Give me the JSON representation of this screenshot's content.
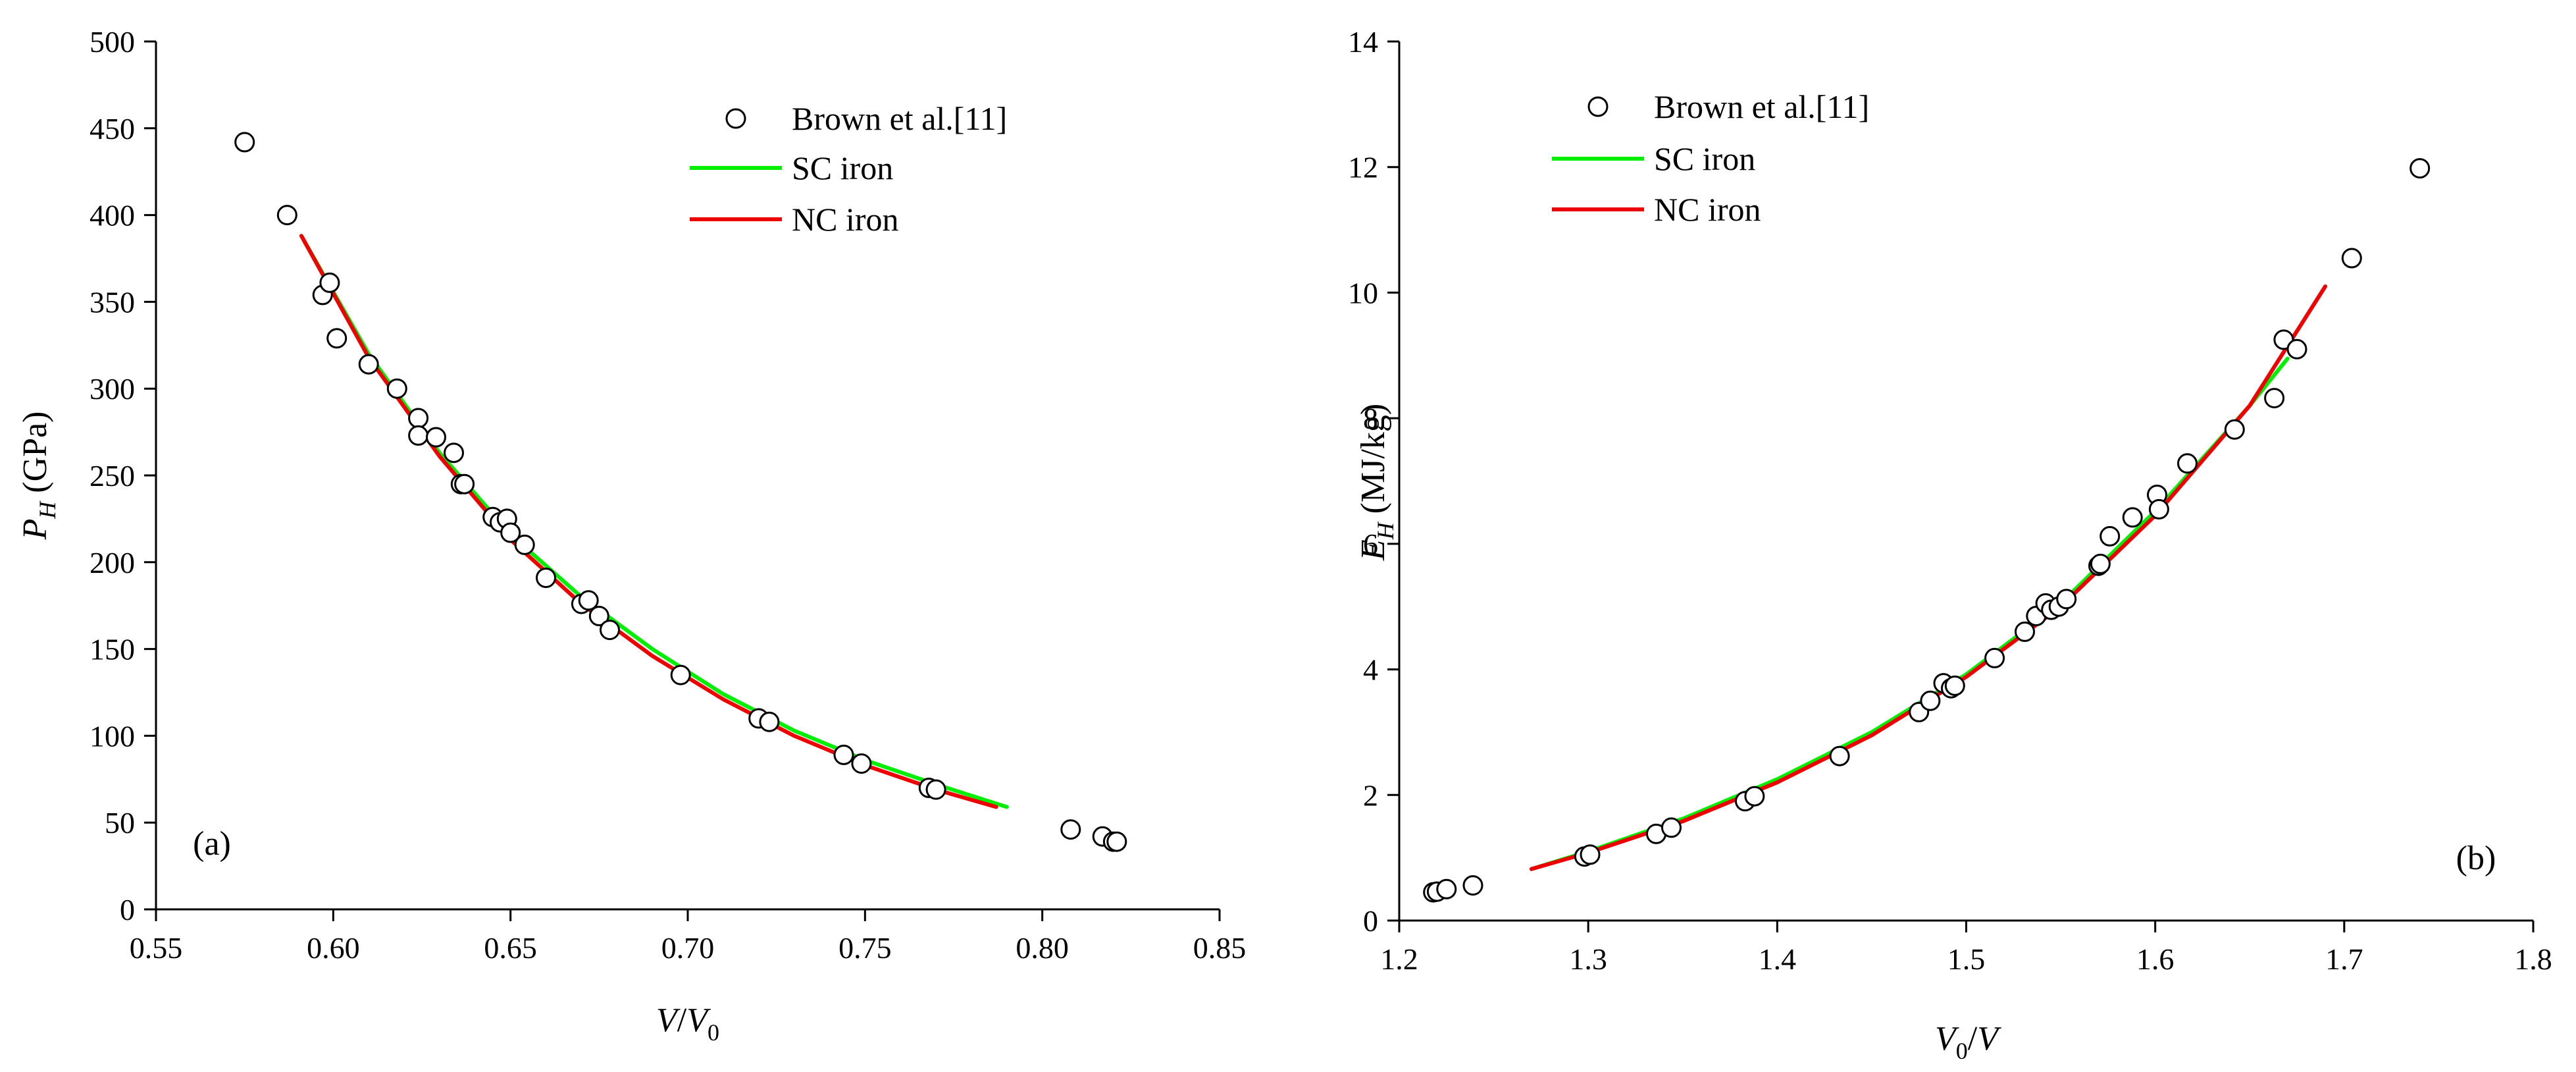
{
  "colors": {
    "sc_iron": "#00ee00",
    "nc_iron": "#ee0000",
    "axis": "#000000"
  },
  "chart_data": [
    {
      "type": "scatter+line",
      "panel_label": "(a)",
      "title": "",
      "xlabel": {
        "var": "V",
        "sep": "/",
        "var2": "V",
        "sub2": "0"
      },
      "ylabel": {
        "var": "P",
        "sub": "H",
        "unit": "(GPa)"
      },
      "xlim": [
        0.55,
        0.85
      ],
      "ylim": [
        0,
        500
      ],
      "xticks": [
        0.55,
        0.6,
        0.65,
        0.7,
        0.75,
        0.8,
        0.85
      ],
      "xtick_labels": [
        "0.55",
        "0.60",
        "0.65",
        "0.70",
        "0.75",
        "0.80",
        "0.85"
      ],
      "yticks": [
        0,
        50,
        100,
        150,
        200,
        250,
        300,
        350,
        400,
        450,
        500
      ],
      "ytick_labels": [
        "0",
        "50",
        "100",
        "150",
        "200",
        "250",
        "300",
        "350",
        "400",
        "450",
        "500"
      ],
      "legend": [
        {
          "label": "Brown et al.[11]",
          "kind": "marker"
        },
        {
          "label": "SC iron",
          "kind": "line",
          "color": "#00ee00"
        },
        {
          "label": "NC iron",
          "kind": "line",
          "color": "#ee0000"
        }
      ],
      "series": [
        {
          "name": "Brown et al.[11]",
          "kind": "scatter",
          "x": [
            0.575,
            0.587,
            0.597,
            0.599,
            0.601,
            0.61,
            0.618,
            0.624,
            0.624,
            0.629,
            0.634,
            0.636,
            0.637,
            0.645,
            0.647,
            0.649,
            0.65,
            0.654,
            0.66,
            0.67,
            0.672,
            0.675,
            0.678,
            0.698,
            0.72,
            0.723,
            0.744,
            0.749,
            0.768,
            0.77,
            0.808,
            0.817,
            0.82,
            0.821
          ],
          "y": [
            442,
            400,
            354,
            361,
            329,
            314,
            300,
            283,
            273,
            272,
            263,
            245,
            245,
            226,
            223,
            225,
            217,
            210,
            191,
            176,
            178,
            169,
            161,
            135,
            110,
            108,
            89,
            84,
            70,
            69,
            46,
            42,
            39,
            39
          ]
        },
        {
          "name": "SC iron",
          "kind": "line",
          "color": "#00ee00",
          "x": [
            0.591,
            0.61,
            0.63,
            0.65,
            0.67,
            0.69,
            0.71,
            0.73,
            0.75,
            0.77,
            0.79
          ],
          "y": [
            388,
            320,
            263,
            216,
            180,
            150,
            124,
            103,
            86,
            72,
            59
          ]
        },
        {
          "name": "NC iron",
          "kind": "line",
          "color": "#ee0000",
          "x": [
            0.591,
            0.61,
            0.63,
            0.65,
            0.67,
            0.69,
            0.71,
            0.73,
            0.75,
            0.77,
            0.787
          ],
          "y": [
            388,
            318,
            261,
            213,
            176,
            146,
            121,
            100,
            83,
            69,
            59
          ]
        }
      ]
    },
    {
      "type": "scatter+line",
      "panel_label": "(b)",
      "title": "",
      "xlabel": {
        "var": "V",
        "sub": "0",
        "sep": "/",
        "var2": "V"
      },
      "ylabel": {
        "var": "E",
        "sub": "H",
        "unit": "(MJ/kg)"
      },
      "xlim": [
        1.2,
        1.8
      ],
      "ylim": [
        0,
        14
      ],
      "xticks": [
        1.2,
        1.3,
        1.4,
        1.5,
        1.6,
        1.7,
        1.8
      ],
      "xtick_labels": [
        "1.2",
        "1.3",
        "1.4",
        "1.5",
        "1.6",
        "1.7",
        "1.8"
      ],
      "yticks": [
        0,
        2,
        4,
        6,
        8,
        10,
        12,
        14
      ],
      "ytick_labels": [
        "0",
        "2",
        "4",
        "6",
        "8",
        "10",
        "12",
        "14"
      ],
      "legend": [
        {
          "label": "Brown et al.[11]",
          "kind": "marker"
        },
        {
          "label": "SC iron",
          "kind": "line",
          "color": "#00ee00"
        },
        {
          "label": "NC iron",
          "kind": "line",
          "color": "#ee0000"
        }
      ],
      "series": [
        {
          "name": "Brown et al.[11]",
          "kind": "scatter",
          "x": [
            1.218,
            1.22,
            1.225,
            1.239,
            1.298,
            1.301,
            1.336,
            1.344,
            1.383,
            1.388,
            1.433,
            1.475,
            1.481,
            1.488,
            1.492,
            1.494,
            1.515,
            1.531,
            1.537,
            1.542,
            1.545,
            1.549,
            1.553,
            1.57,
            1.571,
            1.576,
            1.588,
            1.601,
            1.602,
            1.617,
            1.642,
            1.663,
            1.668,
            1.675,
            1.704,
            1.74
          ],
          "y": [
            0.45,
            0.46,
            0.5,
            0.56,
            1.02,
            1.05,
            1.38,
            1.48,
            1.9,
            1.98,
            2.62,
            3.32,
            3.5,
            3.78,
            3.7,
            3.74,
            4.18,
            4.6,
            4.85,
            5.05,
            4.95,
            5.0,
            5.12,
            5.65,
            5.68,
            6.12,
            6.42,
            6.78,
            6.55,
            7.28,
            7.82,
            8.32,
            9.25,
            9.1,
            10.55,
            11.98
          ]
        },
        {
          "name": "SC iron",
          "kind": "line",
          "color": "#00ee00",
          "x": [
            1.27,
            1.3,
            1.35,
            1.4,
            1.45,
            1.5,
            1.55,
            1.6,
            1.65,
            1.67
          ],
          "y": [
            0.82,
            1.1,
            1.62,
            2.25,
            3.0,
            3.92,
            5.05,
            6.52,
            8.2,
            8.95
          ]
        },
        {
          "name": "NC iron",
          "kind": "line",
          "color": "#ee0000",
          "x": [
            1.27,
            1.3,
            1.35,
            1.4,
            1.45,
            1.5,
            1.55,
            1.6,
            1.65,
            1.69
          ],
          "y": [
            0.82,
            1.08,
            1.58,
            2.2,
            2.95,
            3.88,
            5.0,
            6.45,
            8.2,
            10.1
          ]
        }
      ]
    }
  ]
}
